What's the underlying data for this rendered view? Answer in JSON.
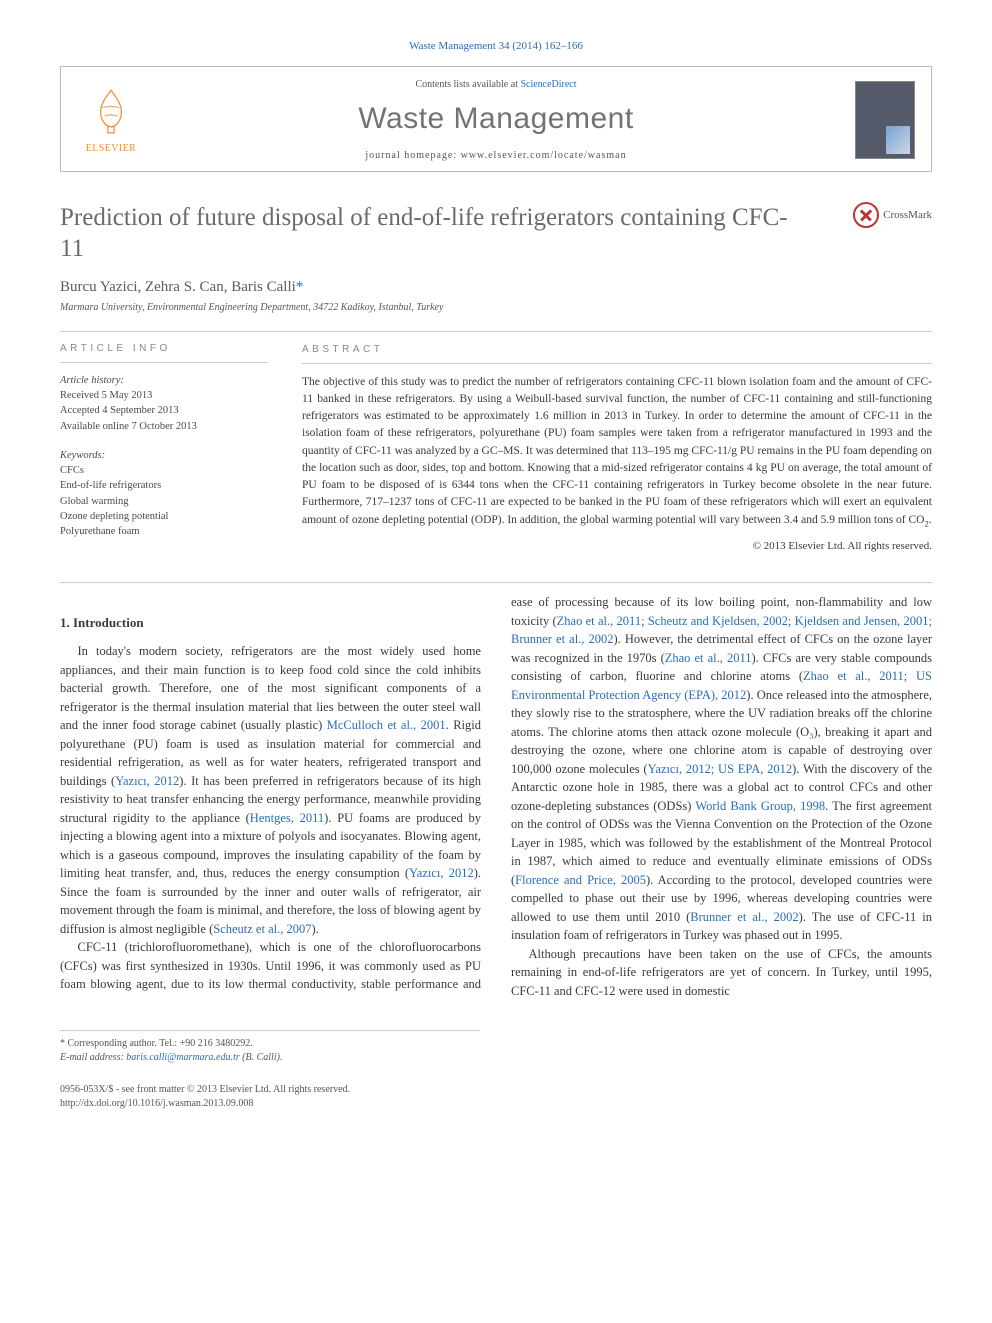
{
  "journal_cite": "Waste Management 34 (2014) 162–166",
  "header": {
    "contents_pre": "Contents lists available at ",
    "contents_link": "ScienceDirect",
    "journal_name": "Waste Management",
    "homepage_label": "journal homepage: www.elsevier.com/locate/wasman",
    "elsevier_word": "ELSEVIER"
  },
  "title": "Prediction of future disposal of end-of-life refrigerators containing CFC-11",
  "crossmark": "CrossMark",
  "authors": "Burcu Yazici, Zehra S. Can, Baris Calli",
  "corresponding_mark": "*",
  "affiliation": "Marmara University, Environmental Engineering Department, 34722 Kadikoy, Istanbul, Turkey",
  "article_info": {
    "head": "ARTICLE INFO",
    "history_label": "Article history:",
    "received": "Received 5 May 2013",
    "accepted": "Accepted 4 September 2013",
    "online": "Available online 7 October 2013",
    "kw_head": "Keywords:",
    "keywords": [
      "CFCs",
      "End-of-life refrigerators",
      "Global warming",
      "Ozone depleting potential",
      "Polyurethane foam"
    ]
  },
  "abstract": {
    "head": "ABSTRACT",
    "text": "The objective of this study was to predict the number of refrigerators containing CFC-11 blown isolation foam and the amount of CFC-11 banked in these refrigerators. By using a Weibull-based survival function, the number of CFC-11 containing and still-functioning refrigerators was estimated to be approximately 1.6 million in 2013 in Turkey. In order to determine the amount of CFC-11 in the isolation foam of these refrigerators, polyurethane (PU) foam samples were taken from a refrigerator manufactured in 1993 and the quantity of CFC-11 was analyzed by a GC–MS. It was determined that 113–195 mg CFC-11/g PU remains in the PU foam depending on the location such as door, sides, top and bottom. Knowing that a mid-sized refrigerator contains 4 kg PU on average, the total amount of PU foam to be disposed of is 6344 tons when the CFC-11 containing refrigerators in Turkey become obsolete in the near future. Furthermore, 717–1237 tons of CFC-11 are expected to be banked in the PU foam of these refrigerators which will exert an equivalent amount of ozone depleting potential (ODP). In addition, the global warming potential will vary between 3.4 and 5.9 million tons of CO",
    "co2_sub": "2",
    "text_tail": ".",
    "copyright": "© 2013 Elsevier Ltd. All rights reserved."
  },
  "section1_head": "1. Introduction",
  "body_paragraphs": [
    "In today's modern society, refrigerators are the most widely used home appliances, and their main function is to keep food cold since the cold inhibits bacterial growth. Therefore, one of the most significant components of a refrigerator is the thermal insulation material that lies between the outer steel wall and the inner food storage cabinet (usually plastic) |McCulloch et al., 2001|. Rigid polyurethane (PU) foam is used as insulation material for commercial and residential refrigeration, as well as for water heaters, refrigerated transport and buildings (|Yazıcı, 2012|). It has been preferred in refrigerators because of its high resistivity to heat transfer enhancing the energy performance, meanwhile providing structural rigidity to the appliance (|Hentges, 2011|). PU foams are produced by injecting a blowing agent into a mixture of polyols and isocyanates. Blowing agent, which is a gaseous compound, improves the insulating capability of the foam by limiting heat transfer, and, thus, reduces the energy consumption (|Yazıcı, 2012|). Since the foam is surrounded by the inner and outer walls of refrigerator, air movement through the foam is minimal, and therefore, the loss of blowing agent by diffusion is almost negligible (|Scheutz et al., 2007|).",
    "CFC-11 (trichlorofluoromethane), which is one of the chlorofluorocarbons (CFCs) was first synthesized in 1930s. Until 1996, it was commonly used as PU foam blowing agent, due to its low thermal conductivity, stable performance and ease of processing because of its low boiling point, non-flammability and low toxicity (|Zhao et al., 2011; Scheutz and Kjeldsen, 2002; Kjeldsen and Jensen, 2001; Brunner et al., 2002|). However, the detrimental effect of CFCs on the ozone layer was recognized in the 1970s (|Zhao et al., 2011|). CFCs are very stable compounds consisting of carbon, fluorine and chlorine atoms (|Zhao et al., 2011; US Environmental Protection Agency (EPA), 2012|). Once released into the atmosphere, they slowly rise to the stratosphere, where the UV radiation breaks off the chlorine atoms. The chlorine atoms then attack ozone molecule (O₃), breaking it apart and destroying the ozone, where one chlorine atom is capable of destroying over 100,000 ozone molecules (|Yazıcı, 2012; US EPA, 2012|). With the discovery of the Antarctic ozone hole in 1985, there was a global act to control CFCs and other ozone-depleting substances (ODSs) |World Bank Group, 1998|. The first agreement on the control of ODSs was the Vienna Convention on the Protection of the Ozone Layer in 1985, which was followed by the establishment of the Montreal Protocol in 1987, which aimed to reduce and eventually eliminate emissions of ODSs (|Florence and Price, 2005|). According to the protocol, developed countries were compelled to phase out their use by 1996, whereas developing countries were allowed to use them until 2010 (|Brunner et al., 2002|). The use of CFC-11 in insulation foam of refrigerators in Turkey was phased out in 1995.",
    "Although precautions have been taken on the use of CFCs, the amounts remaining in end-of-life refrigerators are yet of concern. In Turkey, until 1995, CFC-11 and CFC-12 were used in domestic"
  ],
  "footnotes": {
    "corr": "* Corresponding author. Tel.: +90 216 3480292.",
    "email_label": "E-mail address:",
    "email": "baris.calli@marmara.edu.tr",
    "email_who": "(B. Calli)."
  },
  "footer": {
    "issn": "0956-053X/$ - see front matter © 2013 Elsevier Ltd. All rights reserved.",
    "doi": "http://dx.doi.org/10.1016/j.wasman.2013.09.008"
  },
  "colors": {
    "link": "#2a6db5",
    "text": "#3a3a3a",
    "grey": "#6a6a6a"
  }
}
